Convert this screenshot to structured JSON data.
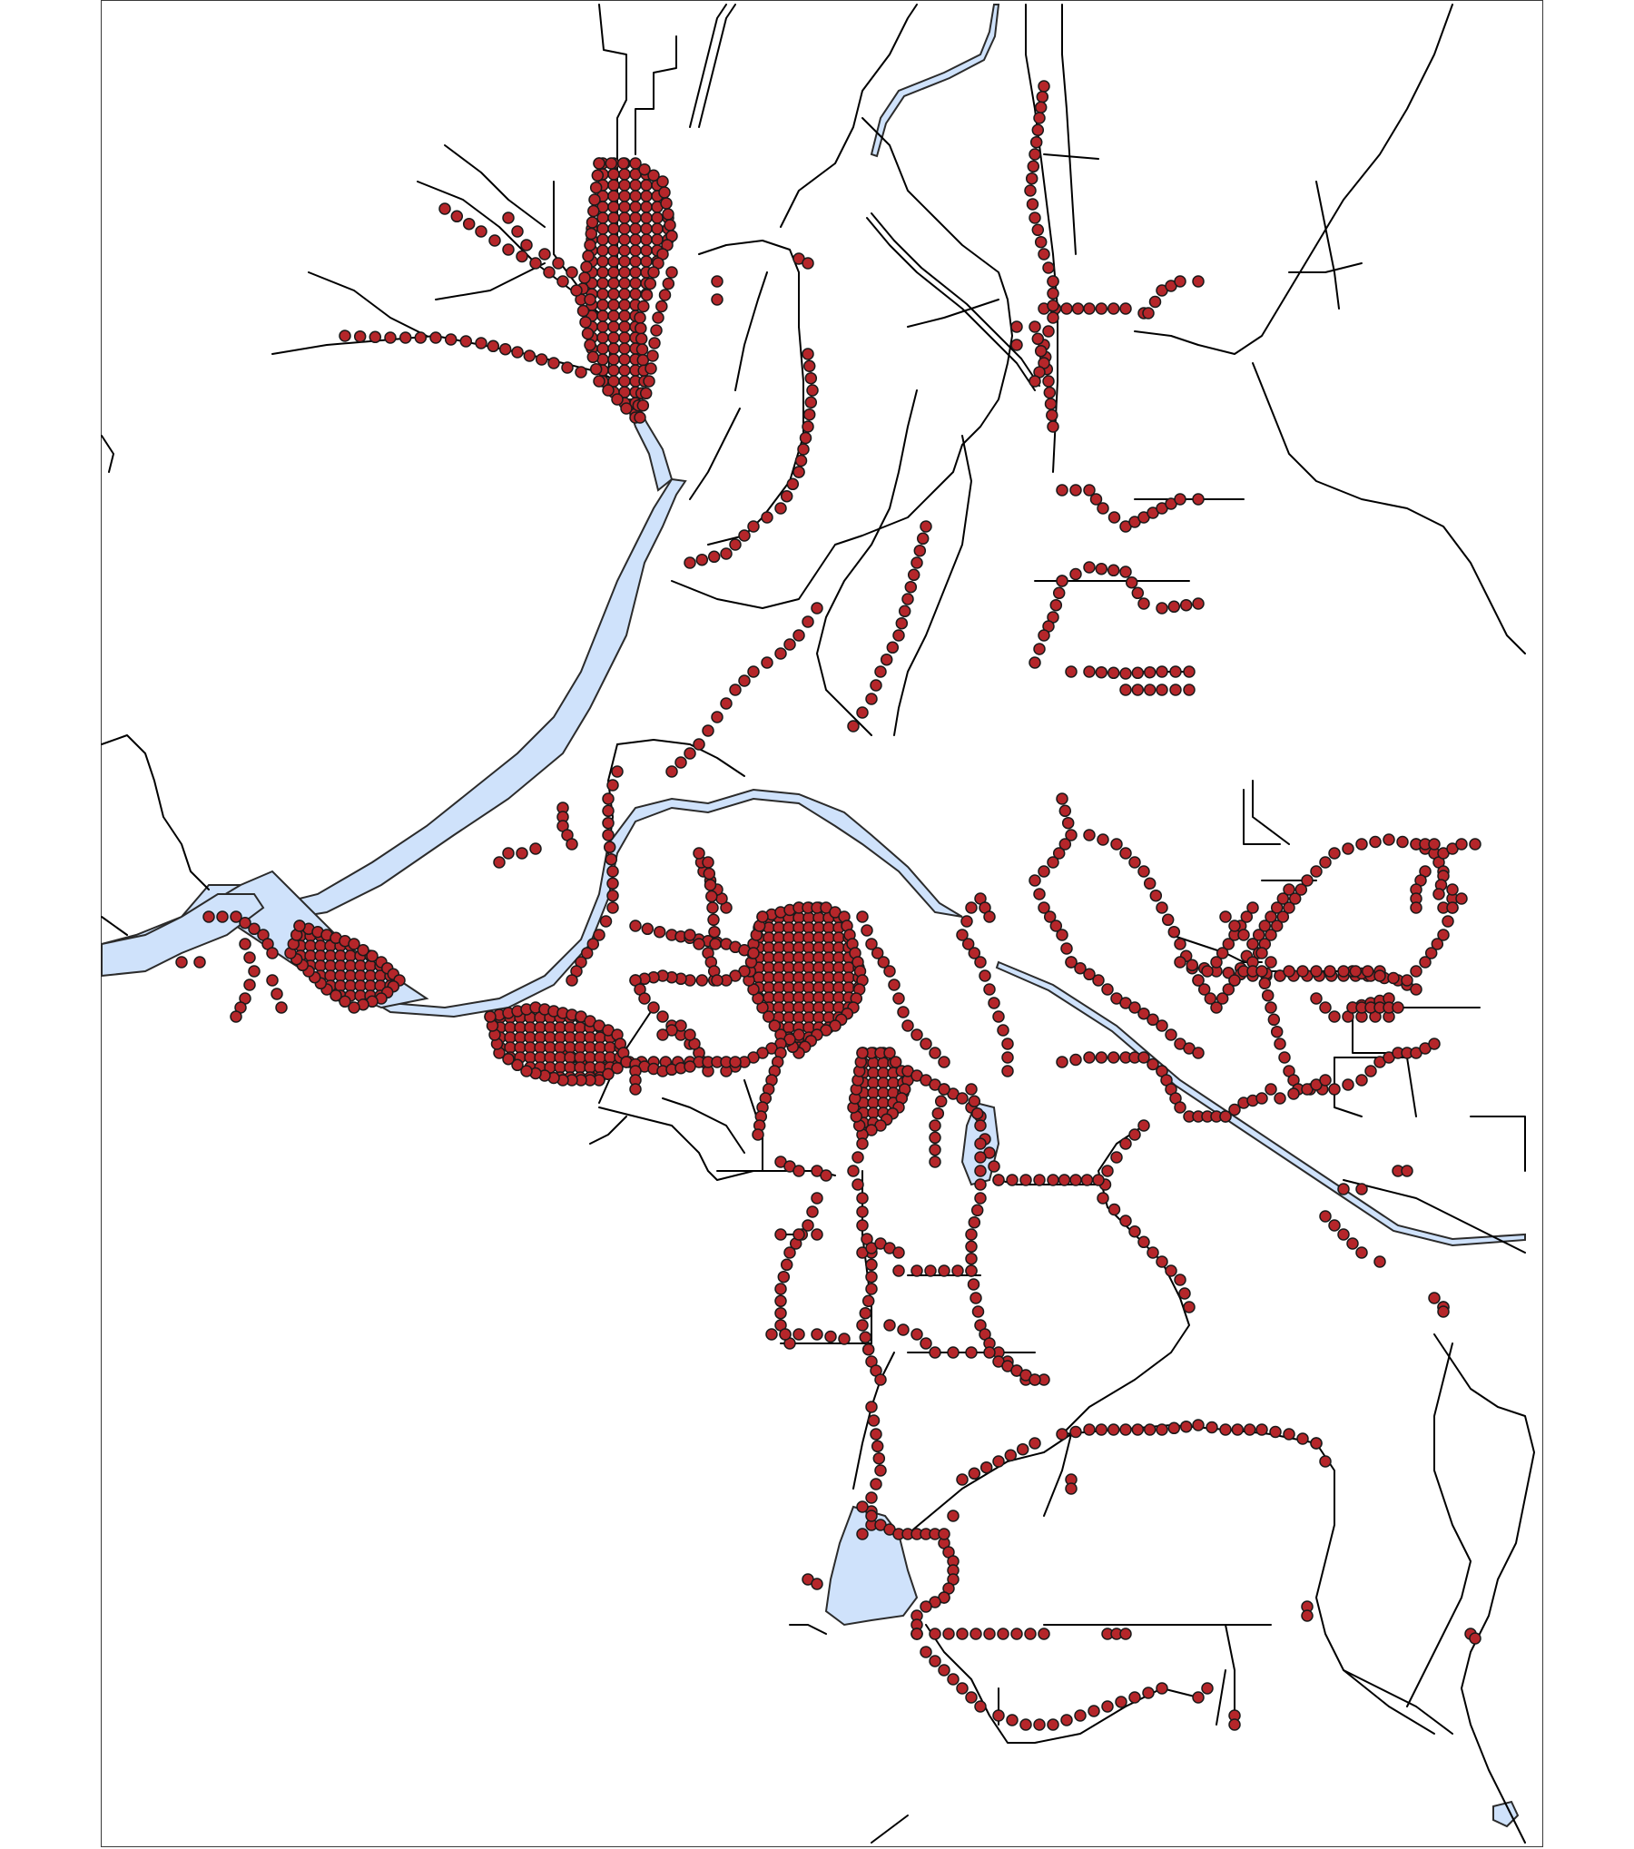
{
  "map": {
    "colors": {
      "background": "#ffffff",
      "water_fill": "#cfe2fb",
      "water_stroke": "#2b2b2b",
      "line": "#000000",
      "point_fill": "#b5262a",
      "point_stroke": "#1a1a1a",
      "frame": "#3a3a3a"
    },
    "layers": [
      "water-bodies",
      "rivers-and-channels",
      "roads-and-drainage",
      "sample-points"
    ],
    "legend": null,
    "title": null
  }
}
